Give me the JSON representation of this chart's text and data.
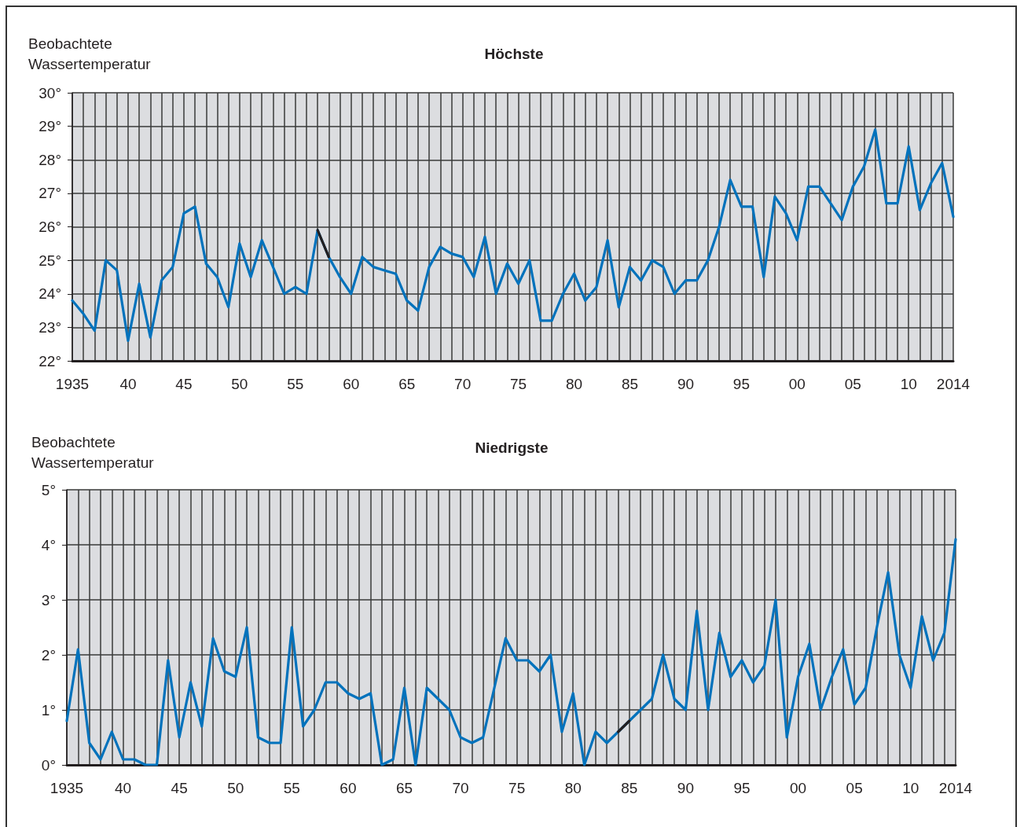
{
  "chart_data": [
    {
      "type": "line",
      "title": "Höchste",
      "ylabel": "Beobachtete\nWassertemperatur",
      "grid": true,
      "marker": "none",
      "line_style": "solid",
      "categories": [
        "1935",
        null,
        null,
        null,
        null,
        "40",
        null,
        null,
        null,
        null,
        "45",
        null,
        null,
        null,
        null,
        "50",
        null,
        null,
        null,
        null,
        "55",
        null,
        null,
        null,
        null,
        "60",
        null,
        null,
        null,
        null,
        "65",
        null,
        null,
        null,
        null,
        "70",
        null,
        null,
        null,
        null,
        "75",
        null,
        null,
        null,
        null,
        "80",
        null,
        null,
        null,
        null,
        "85",
        null,
        null,
        null,
        null,
        "90",
        null,
        null,
        null,
        null,
        "95",
        null,
        null,
        null,
        null,
        "00",
        null,
        null,
        null,
        null,
        "05",
        null,
        null,
        null,
        null,
        "10",
        null,
        null,
        null,
        "2014"
      ],
      "ylim": [
        22,
        30
      ],
      "yticks": [
        {
          "value": 22,
          "label": "22°"
        },
        {
          "value": 23,
          "label": "23°"
        },
        {
          "value": 24,
          "label": "24°"
        },
        {
          "value": 25,
          "label": "25°"
        },
        {
          "value": 26,
          "label": "26°"
        },
        {
          "value": 27,
          "label": "27°"
        },
        {
          "value": 28,
          "label": "28°"
        },
        {
          "value": 29,
          "label": "29°"
        },
        {
          "value": 30,
          "label": "30°"
        }
      ],
      "series": [
        {
          "color": "#0072bc",
          "values": [
            23.8,
            23.4,
            22.9,
            25.0,
            24.7,
            22.6,
            24.3,
            22.7,
            24.4,
            24.8,
            26.4,
            26.6,
            24.9,
            24.5,
            23.6,
            25.5,
            24.5,
            25.6,
            24.8,
            24.0,
            24.2,
            24.0,
            25.9,
            25.1,
            24.5,
            24.0,
            25.1,
            24.8,
            24.7,
            24.6,
            23.8,
            23.5,
            24.8,
            25.4,
            25.2,
            25.1,
            24.5,
            25.7,
            24.0,
            24.9,
            24.3,
            25.0,
            23.2,
            23.2,
            24.0,
            24.6,
            23.8,
            24.2,
            25.6,
            23.6,
            24.8,
            24.4,
            25.0,
            24.8,
            24.0,
            24.4,
            24.4,
            25.0,
            26.0,
            27.4,
            26.6,
            26.6,
            24.5,
            26.9,
            26.4,
            25.6,
            27.2,
            27.2,
            26.7,
            26.2,
            27.2,
            27.8,
            28.9,
            26.7,
            26.7,
            28.4,
            26.5,
            27.3,
            27.9,
            26.3
          ]
        },
        {
          "color": "#231f20",
          "values": [
            null,
            null,
            null,
            null,
            null,
            null,
            null,
            null,
            null,
            null,
            null,
            null,
            null,
            null,
            null,
            null,
            null,
            null,
            null,
            null,
            null,
            null,
            25.9,
            25.1,
            null,
            null,
            null,
            null,
            null,
            null,
            null,
            null,
            null,
            null,
            null,
            null,
            null,
            null,
            null,
            null,
            null,
            null,
            null,
            null,
            null,
            null,
            null,
            null,
            null,
            null,
            null,
            null,
            null,
            null,
            null,
            null,
            null,
            null,
            null,
            null,
            null,
            null,
            null,
            null,
            null,
            null,
            null,
            null,
            null,
            null,
            null,
            null,
            null,
            null,
            null,
            null,
            null,
            null,
            null,
            null
          ]
        }
      ]
    },
    {
      "type": "line",
      "title": "Niedrigste",
      "ylabel": "Beobachtete\nWassertemperatur",
      "grid": true,
      "marker": "none",
      "line_style": "solid",
      "categories": [
        "1935",
        null,
        null,
        null,
        null,
        "40",
        null,
        null,
        null,
        null,
        "45",
        null,
        null,
        null,
        null,
        "50",
        null,
        null,
        null,
        null,
        "55",
        null,
        null,
        null,
        null,
        "60",
        null,
        null,
        null,
        null,
        "65",
        null,
        null,
        null,
        null,
        "70",
        null,
        null,
        null,
        null,
        "75",
        null,
        null,
        null,
        null,
        "80",
        null,
        null,
        null,
        null,
        "85",
        null,
        null,
        null,
        null,
        "90",
        null,
        null,
        null,
        null,
        "95",
        null,
        null,
        null,
        null,
        "00",
        null,
        null,
        null,
        null,
        "05",
        null,
        null,
        null,
        null,
        "10",
        null,
        null,
        null,
        "2014"
      ],
      "ylim": [
        0,
        5
      ],
      "yticks": [
        {
          "value": 0,
          "label": "0°"
        },
        {
          "value": 1,
          "label": "1°"
        },
        {
          "value": 2,
          "label": "2°"
        },
        {
          "value": 3,
          "label": "3°"
        },
        {
          "value": 4,
          "label": "4°"
        },
        {
          "value": 5,
          "label": "5°"
        }
      ],
      "series": [
        {
          "color": "#0072bc",
          "values": [
            0.8,
            2.1,
            0.4,
            0.1,
            0.6,
            0.1,
            0.1,
            0.0,
            0.0,
            1.9,
            0.5,
            1.5,
            0.7,
            2.3,
            1.7,
            1.6,
            2.5,
            0.5,
            0.4,
            0.4,
            2.5,
            0.7,
            1.0,
            1.5,
            1.5,
            1.3,
            1.2,
            1.3,
            0.0,
            0.1,
            1.4,
            0.0,
            1.4,
            1.2,
            1.0,
            0.5,
            0.4,
            0.5,
            1.4,
            2.3,
            1.9,
            1.9,
            1.7,
            2.0,
            0.6,
            1.3,
            0.0,
            0.6,
            0.4,
            0.6,
            0.8,
            1.0,
            1.2,
            2.0,
            1.2,
            1.0,
            2.8,
            1.0,
            2.4,
            1.6,
            1.9,
            1.5,
            1.8,
            3.0,
            0.5,
            1.6,
            2.2,
            1.0,
            1.6,
            2.1,
            1.1,
            1.4,
            2.5,
            3.5,
            2.0,
            1.4,
            2.7,
            1.9,
            2.4,
            4.1
          ]
        },
        {
          "color": "#231f20",
          "values": [
            null,
            null,
            null,
            null,
            null,
            null,
            null,
            null,
            null,
            null,
            null,
            null,
            null,
            null,
            null,
            null,
            null,
            null,
            null,
            null,
            null,
            null,
            null,
            null,
            null,
            null,
            null,
            null,
            null,
            null,
            null,
            null,
            null,
            null,
            null,
            null,
            null,
            null,
            null,
            null,
            null,
            null,
            null,
            null,
            null,
            null,
            null,
            null,
            null,
            0.6,
            0.8,
            null,
            null,
            null,
            null,
            null,
            null,
            null,
            null,
            null,
            null,
            null,
            null,
            null,
            null,
            null,
            null,
            null,
            null,
            null,
            null,
            null,
            null,
            null,
            null,
            null,
            null,
            null,
            null,
            null
          ]
        }
      ]
    }
  ]
}
